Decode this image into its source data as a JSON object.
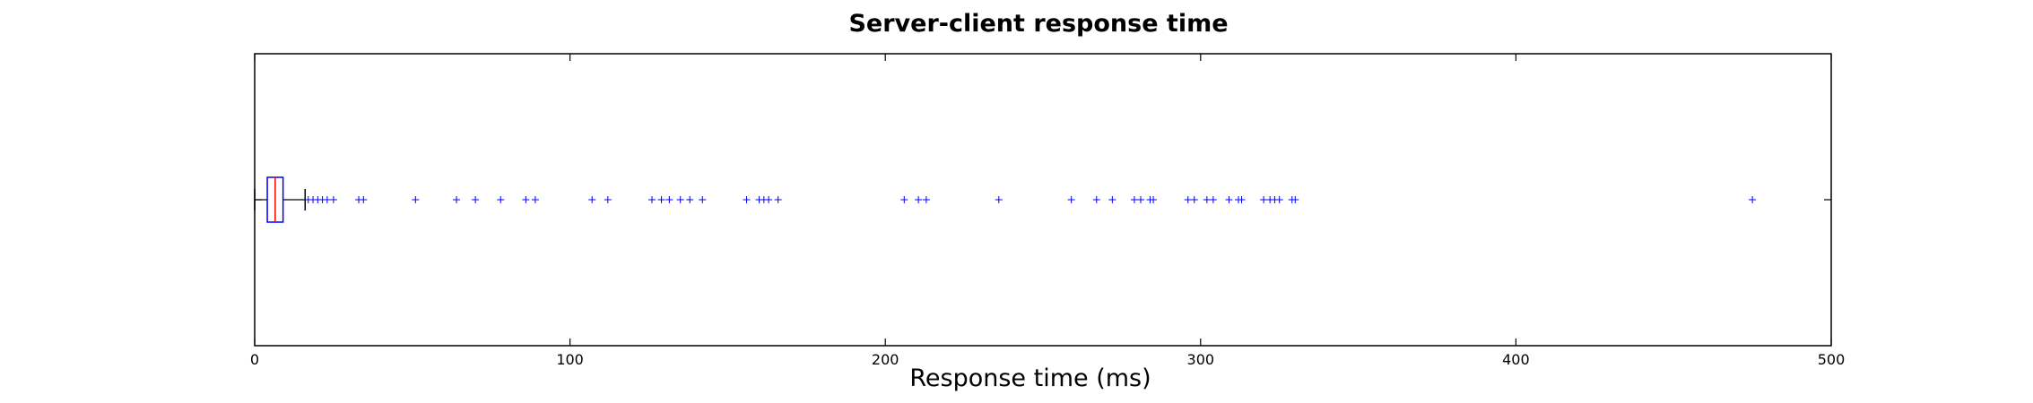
{
  "chart_data": {
    "type": "boxplot",
    "orientation": "horizontal",
    "title": "Server-client response time",
    "xlabel": "Response time (ms)",
    "ylabel": "",
    "xlim": [
      0,
      500
    ],
    "xticks": [
      0,
      100,
      200,
      300,
      400,
      500
    ],
    "grid": false,
    "colors": {
      "box": "#0000ff",
      "median": "#ff0000",
      "whisker": "#000000",
      "flier": "#0000ff",
      "frame": "#000000"
    },
    "box": {
      "whisker_low": 0,
      "q1": 4,
      "median": 6.5,
      "q3": 9,
      "whisker_high": 16
    },
    "outliers": [
      17,
      18.5,
      20,
      21.5,
      23,
      25,
      33,
      34.5,
      51,
      64,
      70,
      78,
      86,
      89,
      107,
      112,
      126,
      129,
      131.5,
      135,
      138,
      142,
      156,
      160,
      161.5,
      163,
      166,
      206,
      210.5,
      213,
      236,
      259,
      267,
      272,
      279,
      281,
      284,
      285,
      296,
      298,
      302,
      304,
      309,
      312,
      313,
      320,
      322,
      323.5,
      325,
      329,
      330,
      475
    ]
  }
}
